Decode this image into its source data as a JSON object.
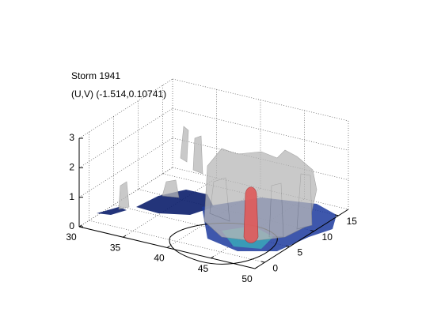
{
  "chart_data": {
    "type": "isosurface3d",
    "title": "Storm 1941",
    "subtitle": "(U,V) (-1.514,0.10741)",
    "xlim": [
      30,
      50
    ],
    "xticks": [
      30,
      35,
      40,
      45,
      50
    ],
    "ylim": [
      -2,
      17
    ],
    "yticks": [
      0,
      5,
      10,
      15
    ],
    "zlim": [
      0,
      3
    ],
    "zticks": [
      0,
      1,
      2,
      3
    ],
    "grid": true
  }
}
